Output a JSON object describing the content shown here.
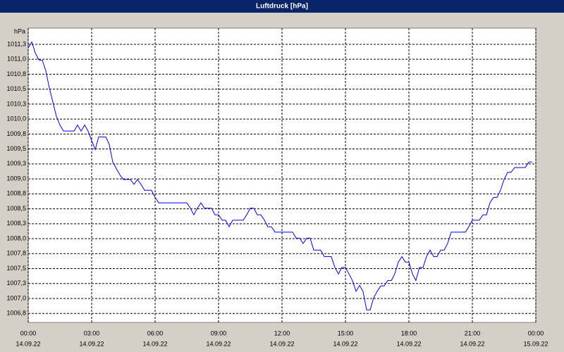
{
  "chart_data": {
    "type": "line",
    "title": "Luftdruck [hPa]",
    "y_label": "hPa",
    "xlim": [
      0,
      24
    ],
    "ylim": [
      1006.6,
      1011.52
    ],
    "grid": true,
    "xticks": [
      {
        "value": 0,
        "label": "00:00",
        "sublabel": "14.09.22"
      },
      {
        "value": 3,
        "label": "03:00",
        "sublabel": "14.09.22"
      },
      {
        "value": 6,
        "label": "06:00",
        "sublabel": "14.09.22"
      },
      {
        "value": 9,
        "label": "09:00",
        "sublabel": "14.09.22"
      },
      {
        "value": 12,
        "label": "12:00",
        "sublabel": "14.09.22"
      },
      {
        "value": 15,
        "label": "15:00",
        "sublabel": "14.09.22"
      },
      {
        "value": 18,
        "label": "18:00",
        "sublabel": "14.09.22"
      },
      {
        "value": 21,
        "label": "21:00",
        "sublabel": "14.09.22"
      },
      {
        "value": 24,
        "label": "00:00",
        "sublabel": "15.09.22"
      }
    ],
    "yticks": [
      {
        "value": 1011.25,
        "label": "1011,3"
      },
      {
        "value": 1011.0,
        "label": "1011,0"
      },
      {
        "value": 1010.75,
        "label": "1010,8"
      },
      {
        "value": 1010.5,
        "label": "1010,5"
      },
      {
        "value": 1010.25,
        "label": "1010,3"
      },
      {
        "value": 1010.0,
        "label": "1010,0"
      },
      {
        "value": 1009.75,
        "label": "1009,8"
      },
      {
        "value": 1009.5,
        "label": "1009,5"
      },
      {
        "value": 1009.25,
        "label": "1009,3"
      },
      {
        "value": 1009.0,
        "label": "1009,0"
      },
      {
        "value": 1008.75,
        "label": "1008,8"
      },
      {
        "value": 1008.5,
        "label": "1008,5"
      },
      {
        "value": 1008.25,
        "label": "1008,3"
      },
      {
        "value": 1008.0,
        "label": "1008,0"
      },
      {
        "value": 1007.75,
        "label": "1007,8"
      },
      {
        "value": 1007.5,
        "label": "1007,5"
      },
      {
        "value": 1007.25,
        "label": "1007,3"
      },
      {
        "value": 1007.0,
        "label": "1007,0"
      },
      {
        "value": 1006.75,
        "label": "1006,8"
      }
    ],
    "x": [
      0,
      0.17,
      0.33,
      0.5,
      0.67,
      0.83,
      1,
      1.17,
      1.33,
      1.5,
      1.67,
      2.17,
      2.33,
      2.5,
      2.67,
      2.83,
      3,
      3.17,
      3.33,
      3.67,
      3.83,
      4,
      4.17,
      4.33,
      4.5,
      4.83,
      5,
      5.17,
      5.33,
      5.5,
      5.83,
      6,
      6.17,
      7.5,
      7.67,
      7.83,
      8,
      8.17,
      8.33,
      8.67,
      8.83,
      9,
      9.17,
      9.33,
      9.5,
      9.67,
      10.17,
      10.33,
      10.5,
      10.67,
      10.83,
      11,
      11.17,
      11.33,
      11.5,
      11.67,
      12.5,
      12.67,
      12.83,
      13,
      13.17,
      13.33,
      13.5,
      13.83,
      14,
      14.33,
      14.5,
      14.67,
      14.83,
      15,
      15.17,
      15.33,
      15.5,
      15.67,
      15.83,
      16,
      16.17,
      16.33,
      16.5,
      16.67,
      16.83,
      17,
      17.17,
      17.33,
      17.5,
      17.67,
      17.83,
      18,
      18.17,
      18.33,
      18.5,
      18.67,
      18.83,
      19,
      19.17,
      19.33,
      19.5,
      19.67,
      19.83,
      20,
      20.67,
      20.83,
      21,
      21.33,
      21.5,
      21.67,
      21.83,
      22,
      22.17,
      22.33,
      22.5,
      22.67,
      22.83,
      23,
      23.5,
      23.67,
      23.83
    ],
    "series": [
      {
        "name": "Luftdruck",
        "color": "#0000ff",
        "values": [
          1011.19,
          1011.29,
          1011.11,
          1010.99,
          1010.98,
          1010.81,
          1010.52,
          1010.28,
          1010.05,
          1009.9,
          1009.8,
          1009.8,
          1009.9,
          1009.8,
          1009.9,
          1009.8,
          1009.64,
          1009.49,
          1009.7,
          1009.7,
          1009.58,
          1009.28,
          1009.17,
          1009.07,
          1008.99,
          1008.99,
          1008.91,
          1008.99,
          1008.91,
          1008.81,
          1008.81,
          1008.69,
          1008.6,
          1008.6,
          1008.51,
          1008.4,
          1008.51,
          1008.6,
          1008.51,
          1008.51,
          1008.4,
          1008.4,
          1008.31,
          1008.31,
          1008.2,
          1008.31,
          1008.31,
          1008.4,
          1008.51,
          1008.51,
          1008.4,
          1008.4,
          1008.31,
          1008.2,
          1008.2,
          1008.11,
          1008.11,
          1008.01,
          1008.01,
          1007.92,
          1008.01,
          1008.01,
          1007.81,
          1007.81,
          1007.7,
          1007.7,
          1007.52,
          1007.41,
          1007.52,
          1007.52,
          1007.41,
          1007.3,
          1007.12,
          1007.22,
          1007.12,
          1006.81,
          1006.81,
          1007.01,
          1007.12,
          1007.21,
          1007.21,
          1007.3,
          1007.3,
          1007.41,
          1007.61,
          1007.7,
          1007.61,
          1007.61,
          1007.41,
          1007.3,
          1007.52,
          1007.52,
          1007.7,
          1007.81,
          1007.7,
          1007.7,
          1007.81,
          1007.81,
          1007.92,
          1008.11,
          1008.11,
          1008.2,
          1008.31,
          1008.31,
          1008.4,
          1008.4,
          1008.6,
          1008.69,
          1008.69,
          1008.81,
          1008.99,
          1009.11,
          1009.11,
          1009.19,
          1009.19,
          1009.28,
          1009.28
        ]
      }
    ]
  }
}
